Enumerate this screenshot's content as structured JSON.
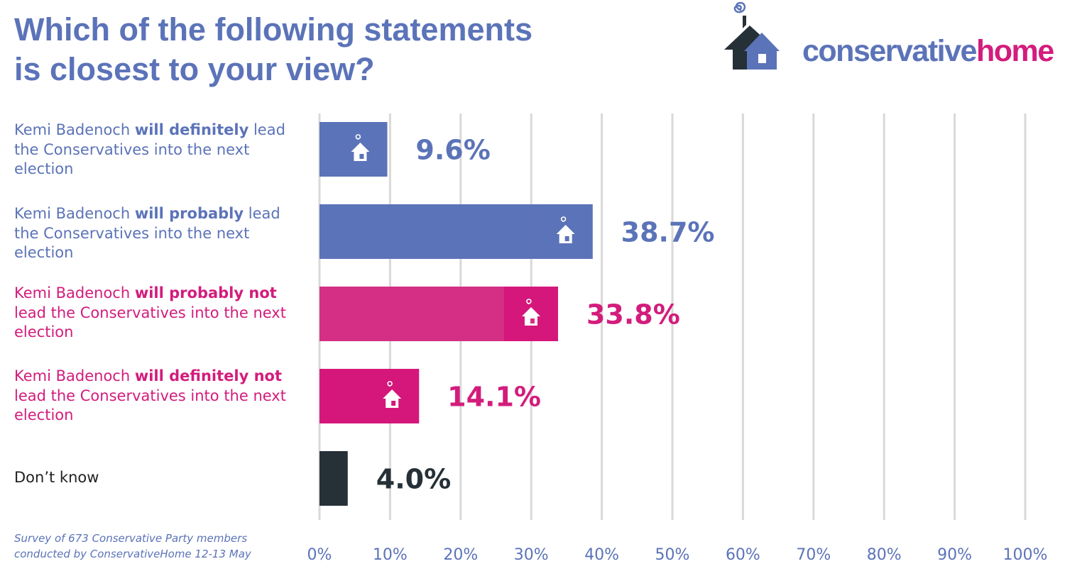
{
  "title": {
    "line1": "Which of the following statements",
    "line2": "is closest to your view?"
  },
  "logo": {
    "word1": "conservative",
    "word2": "home",
    "colors": {
      "roof": "#263037",
      "house": "#5b73b8",
      "word1": "#5b73b8",
      "word2": "#d31c7c"
    }
  },
  "source": {
    "line1": "Survey of 673 Conservative Party members",
    "line2": "conducted by ConservativeHome 12-13 May"
  },
  "chart_data": {
    "type": "bar",
    "orientation": "horizontal",
    "categories": [
      "Kemi Badenoch will definitely lead the Conservatives into the next election",
      "Kemi Badenoch will probably lead the Conservatives into the next election",
      "Kemi Badenoch will probably not lead the Conservatives into the next election",
      "Kemi Badenoch will definitely not lead the Conservatives into the next election",
      "Don’t know"
    ],
    "category_labels": [
      {
        "pre": "Kemi Badenoch ",
        "bold": "will definitely",
        "post": " lead the Conservatives into the next election"
      },
      {
        "pre": "Kemi Badenoch ",
        "bold": "will probably",
        "post": " lead the Conservatives into the next election"
      },
      {
        "pre": "Kemi Badenoch ",
        "bold": "will probably not",
        "post": " lead the Conservatives into the next election"
      },
      {
        "pre": "Kemi Badenoch ",
        "bold": "will definitely not",
        "post": " lead the Conservatives into the next election"
      },
      {
        "pre": "Don’t know",
        "bold": "",
        "post": ""
      }
    ],
    "values": [
      9.6,
      38.7,
      33.8,
      14.1,
      4.0
    ],
    "value_labels": [
      "9.6%",
      "38.7%",
      "33.8%",
      "14.1%",
      "4.0%"
    ],
    "bar_colors": [
      "#5b73b8",
      "#5b73b8",
      "#d42f85",
      "#d5177b",
      "#263037"
    ],
    "label_colors": [
      "#5b73b8",
      "#5b73b8",
      "#d31c7c",
      "#d31c7c",
      "#263037"
    ],
    "bar_icon": "house-icon",
    "xlim": [
      0,
      100
    ],
    "xticks": [
      0,
      10,
      20,
      30,
      40,
      50,
      60,
      70,
      80,
      90,
      100
    ],
    "xtick_labels": [
      "0%",
      "10%",
      "20%",
      "30%",
      "40%",
      "50%",
      "60%",
      "70%",
      "80%",
      "90%",
      "100%"
    ],
    "tick_color": "#5b73b8",
    "grid": true,
    "grid_color": "#d9d9d9",
    "legend": "none"
  }
}
